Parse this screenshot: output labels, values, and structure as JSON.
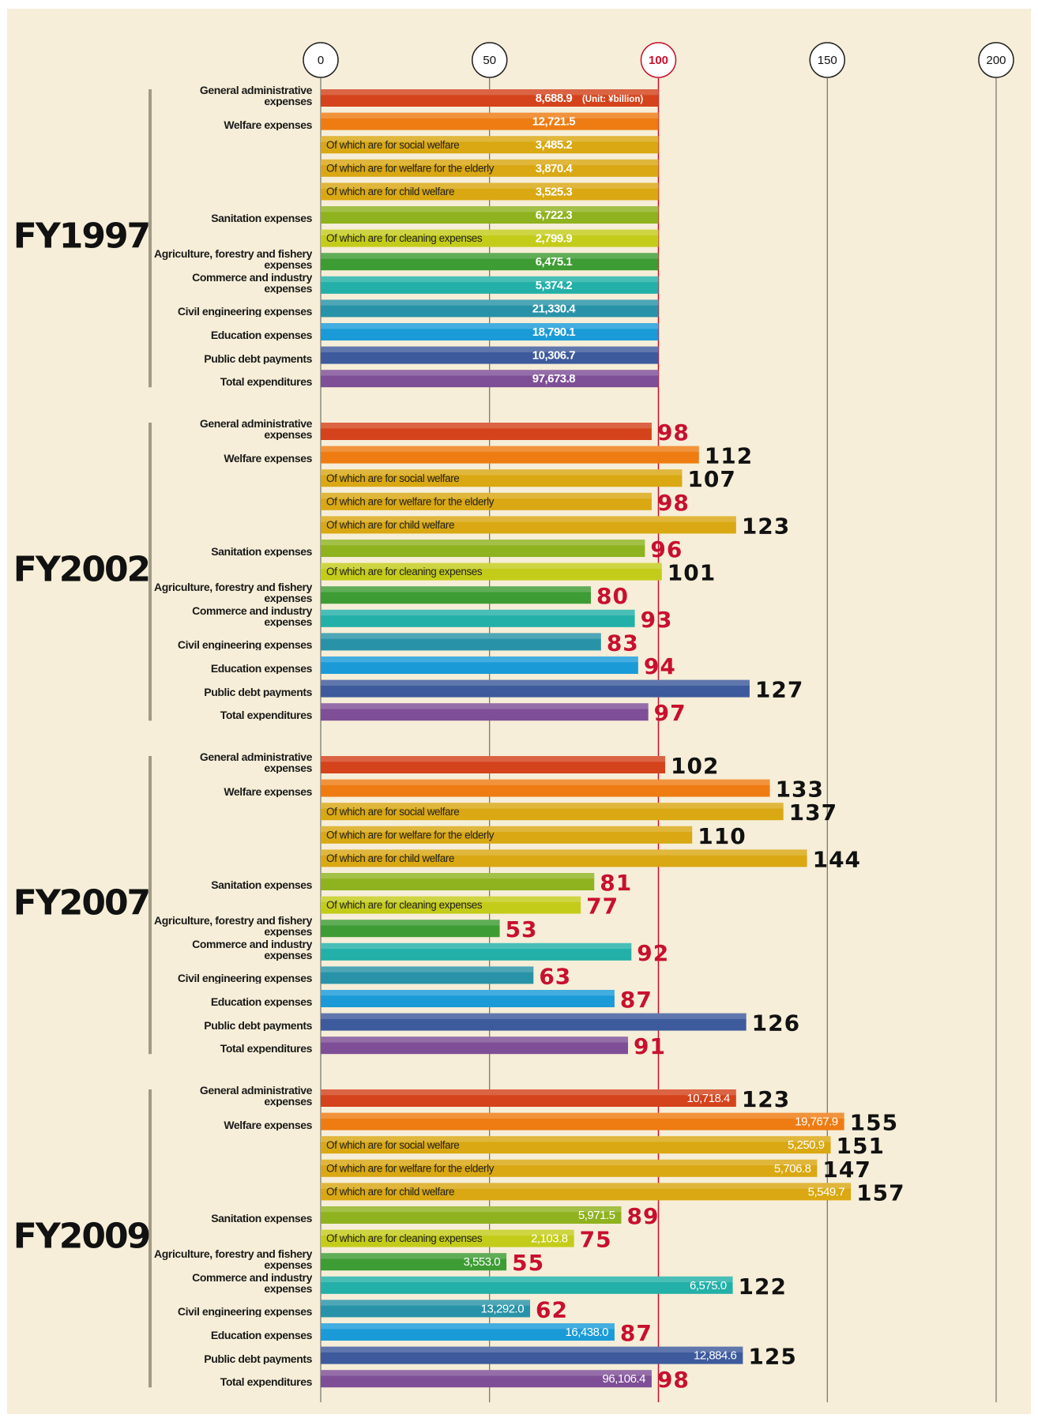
{
  "chart_data": {
    "type": "bar",
    "orientation": "horizontal",
    "categories": [
      "General administrative expenses",
      "Welfare expenses",
      "Of which are for social welfare",
      "Of which are for welfare for the elderly",
      "Of which are for child welfare",
      "Sanitation expenses",
      "Of which are for cleaning expenses",
      "Agriculture, forestry and fishery expenses",
      "Commerce and industry expenses",
      "Civil engineering expenses",
      "Education expenses",
      "Public debt payments",
      "Total expenditures"
    ],
    "indented": [
      false,
      false,
      true,
      true,
      true,
      false,
      true,
      false,
      false,
      false,
      false,
      false,
      false
    ],
    "colors": [
      "#d4431c",
      "#ee7c12",
      "#d9a812",
      "#d9a812",
      "#d9a812",
      "#8fb21f",
      "#c4cc1a",
      "#3e9c34",
      "#22b0a8",
      "#2893a8",
      "#1a9bd8",
      "#3d5a9c",
      "#7e4f96"
    ],
    "xlim": [
      0,
      200
    ],
    "xticks": [
      0,
      50,
      100,
      150,
      200
    ],
    "reference": 100,
    "unit_note": "(Unit: ¥billion)",
    "series": [
      {
        "name": "FY1997",
        "data_labels": [
          "amount"
        ],
        "values": [
          100,
          100,
          100,
          100,
          100,
          100,
          100,
          100,
          100,
          100,
          100,
          100,
          100
        ],
        "amount_labels": [
          "8,688.9",
          "12,721.5",
          "3,485.2",
          "3,870.4",
          "3,525.3",
          "6,722.3",
          "2,799.9",
          "6,475.1",
          "5,374.2",
          "21,330.4",
          "18,790.1",
          "10,306.7",
          "97,673.8"
        ]
      },
      {
        "name": "FY2002",
        "data_labels": [
          "index"
        ],
        "values": [
          98,
          112,
          107,
          98,
          123,
          96,
          101,
          80,
          93,
          83,
          94,
          127,
          97
        ]
      },
      {
        "name": "FY2007",
        "data_labels": [
          "index"
        ],
        "values": [
          102,
          133,
          137,
          110,
          144,
          81,
          77,
          53,
          92,
          63,
          87,
          126,
          91
        ]
      },
      {
        "name": "FY2009",
        "data_labels": [
          "amount",
          "index"
        ],
        "values": [
          123,
          155,
          151,
          147,
          157,
          89,
          75,
          55,
          122,
          62,
          87,
          125,
          98
        ],
        "amount_labels": [
          "10,718.4",
          "19,767.9",
          "5,250.9",
          "5,706.8",
          "5,549.7",
          "5,971.5",
          "2,103.8",
          "3,553.0",
          "6,575.0",
          "13,292.0",
          "16,438.0",
          "12,884.6",
          "96,106.4"
        ]
      }
    ]
  }
}
